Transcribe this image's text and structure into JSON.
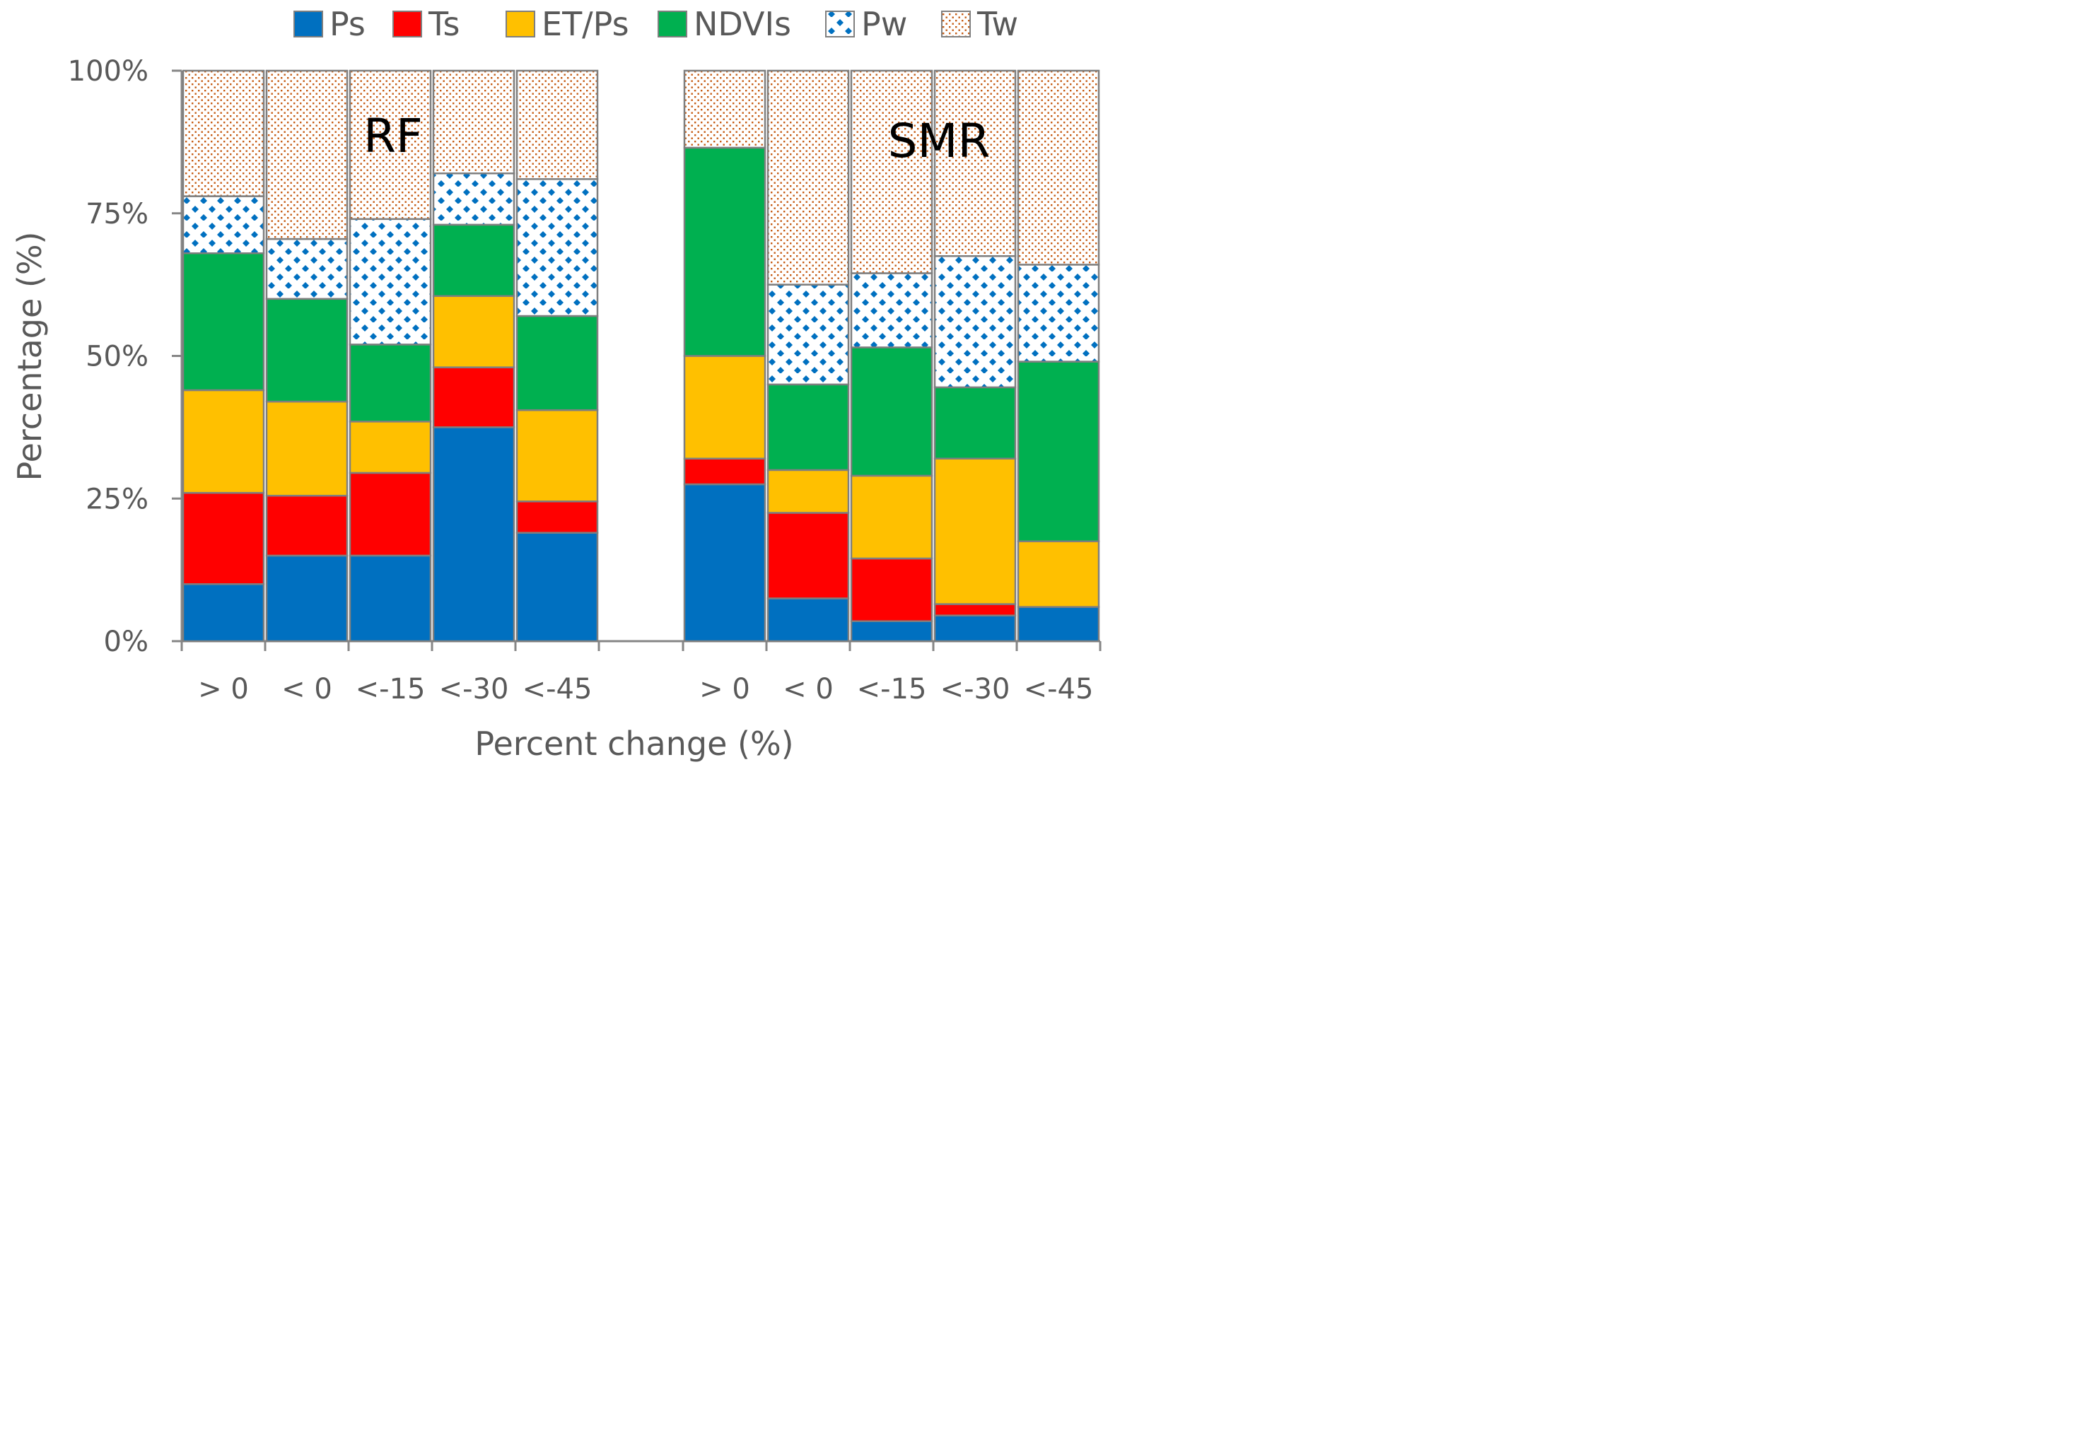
{
  "chart_data": {
    "type": "bar",
    "stacked": true,
    "xlabel": "Percent change (%)",
    "ylabel": "Percentage (%)",
    "ylim": [
      0,
      100
    ],
    "y_ticks": [
      "0%",
      "25%",
      "50%",
      "75%",
      "100%"
    ],
    "legend_position": "top",
    "groups": [
      {
        "name": "RF",
        "categories": [
          "> 0",
          "< 0",
          "<-15",
          "<-30",
          "<-45"
        ]
      },
      {
        "name": "SMR",
        "categories": [
          "> 0",
          "< 0",
          "<-15",
          "<-30",
          "<-45"
        ]
      }
    ],
    "series": [
      {
        "name": "Ps",
        "color": "#0070C0",
        "pattern": "solid",
        "values": [
          10,
          15,
          15,
          37.5,
          19,
          27.5,
          7.5,
          3.5,
          4.5,
          6
        ]
      },
      {
        "name": "Ts",
        "color": "#FF0000",
        "pattern": "solid",
        "values": [
          16,
          10.5,
          14.5,
          10.5,
          5.5,
          4.5,
          15,
          11,
          2,
          0
        ]
      },
      {
        "name": "ET/Ps",
        "color": "#FFC000",
        "pattern": "solid",
        "values": [
          18,
          16.5,
          9,
          12.5,
          16,
          18,
          7.5,
          14.5,
          25.5,
          11.5
        ]
      },
      {
        "name": "NDVIs",
        "color": "#00B050",
        "pattern": "solid",
        "values": [
          24,
          18,
          13.5,
          12.5,
          16.5,
          36.5,
          15,
          22.5,
          12.5,
          31.5
        ]
      },
      {
        "name": "Pw",
        "color": "#0070C0",
        "pattern": "diamond",
        "values": [
          10,
          10.5,
          22,
          9,
          24,
          0,
          17.5,
          13,
          23,
          17
        ]
      },
      {
        "name": "Tw",
        "color": "#C55A11",
        "pattern": "dots",
        "values": [
          22,
          29.5,
          26,
          18,
          19,
          13.5,
          37.5,
          35.5,
          32.5,
          34
        ]
      }
    ]
  }
}
